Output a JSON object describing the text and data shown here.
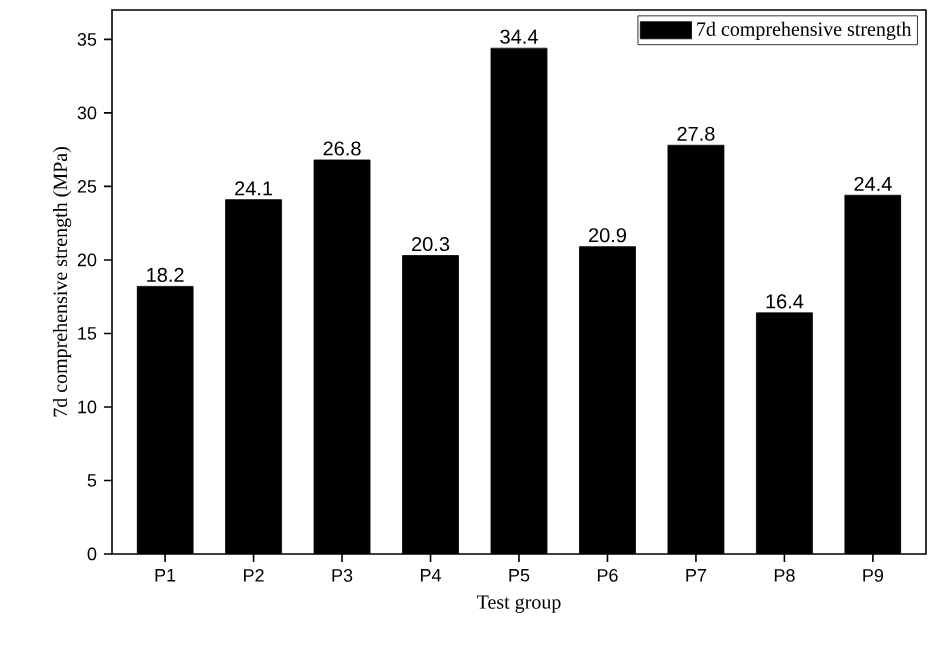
{
  "chart_data": {
    "type": "bar",
    "xlabel": "Test group",
    "ylabel": "7d comprehensive strength (MPa)",
    "categories": [
      "P1",
      "P2",
      "P3",
      "P4",
      "P5",
      "P6",
      "P7",
      "P8",
      "P9"
    ],
    "series": [
      {
        "name": "7d comprehensive strength",
        "color": "#000000",
        "values": [
          18.2,
          24.1,
          26.8,
          20.3,
          34.4,
          20.9,
          27.8,
          16.4,
          24.4
        ]
      }
    ],
    "ylim": [
      0,
      37
    ],
    "yticks": [
      0,
      5,
      10,
      15,
      20,
      25,
      30,
      35
    ],
    "data_labels": true,
    "legend": "top right",
    "grid": false
  }
}
